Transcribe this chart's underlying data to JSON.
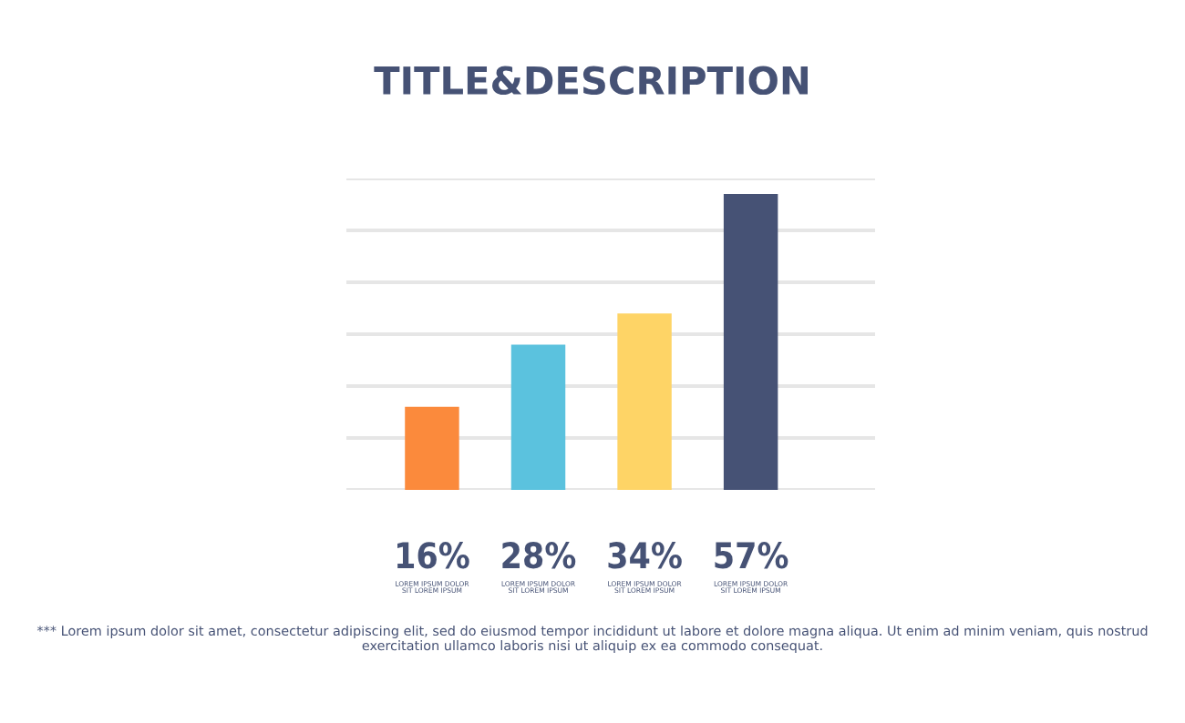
{
  "chart_data": {
    "type": "bar",
    "title": "TITLE&DESCRIPTION",
    "categories": [
      "LOREM IPSUM DOLOR\nSIT LOREM IPSUM",
      "LOREM IPSUM DOLOR\nSIT LOREM IPSUM",
      "LOREM IPSUM DOLOR\nSIT LOREM IPSUM",
      "LOREM IPSUM DOLOR\nSIT LOREM IPSUM"
    ],
    "values": [
      16,
      28,
      34,
      57
    ],
    "colors": [
      "#fb8a3c",
      "#5bc2de",
      "#fed466",
      "#465275"
    ],
    "value_labels": [
      "16%",
      "28%",
      "34%",
      "57%"
    ],
    "ylim": [
      0,
      60
    ],
    "yticks": [
      {
        "value": 0,
        "label": null
      },
      {
        "value": 10,
        "label": null
      },
      {
        "value": 20,
        "label": null
      },
      {
        "value": 30,
        "label": null
      },
      {
        "value": 40,
        "label": null
      },
      {
        "value": 50,
        "label": null
      },
      {
        "value": 60,
        "label": null
      }
    ],
    "grid": "y",
    "annotations": [
      "*** Lorem ipsum dolor sit amet, consectetur adipiscing elit, sed do eiusmod tempor incididunt ut labore et dolore magna aliqua. Ut enim ad minim veniam, quis nostrud exercitation ullamco laboris nisi ut aliquip ex ea commodo consequat."
    ]
  }
}
